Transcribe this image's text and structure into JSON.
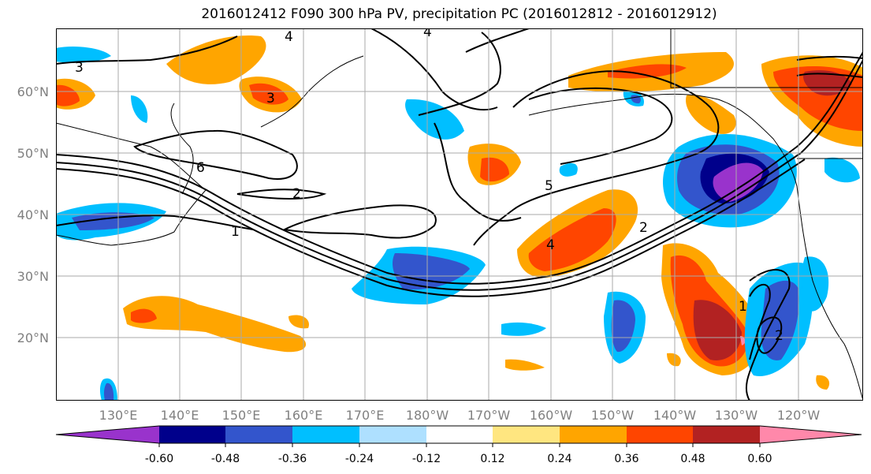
{
  "title": "2016012412 F090 300 hPa PV, precipitation PC (2016012812 - 2016012912)",
  "lat_labels": [
    "60°N",
    "50°N",
    "40°N",
    "30°N",
    "20°N"
  ],
  "lon_labels": [
    "130°E",
    "140°E",
    "150°E",
    "160°E",
    "170°E",
    "180°W",
    "170°W",
    "160°W",
    "150°W",
    "140°W",
    "130°W",
    "120°W"
  ],
  "colorbar": {
    "colors": [
      "#9933cc",
      "#00008b",
      "#3355cc",
      "#00bfff",
      "#aee0ff",
      "#ffffff",
      "#ffe680",
      "#ffa500",
      "#ff4500",
      "#b22222",
      "#ff88aa"
    ],
    "tick_labels": [
      "-0.60",
      "-0.48",
      "-0.36",
      "-0.24",
      "-0.12",
      "0.12",
      "0.24",
      "0.36",
      "0.48",
      "0.60"
    ]
  },
  "contour_labels": [
    "3",
    "4",
    "4",
    "6",
    "2",
    "1",
    "4",
    "5",
    "2",
    "1",
    "2",
    "3"
  ]
}
